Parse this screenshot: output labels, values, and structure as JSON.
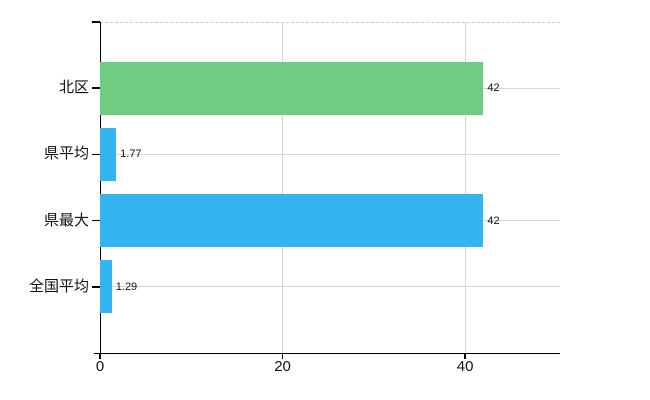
{
  "chart_data": {
    "type": "bar",
    "orientation": "horizontal",
    "title": "",
    "categories": [
      "北区",
      "県平均",
      "県最大",
      "全国平均"
    ],
    "values": [
      42,
      1.77,
      42,
      1.29
    ],
    "value_labels": [
      "42",
      "1.77",
      "42",
      "1.29"
    ],
    "bar_colors": [
      "#6fcc81",
      "#34b5f1",
      "#34b5f1",
      "#34b5f1"
    ],
    "x_ticks": [
      0,
      20,
      40
    ],
    "x_tick_labels": [
      "0",
      "20",
      "40"
    ],
    "xlim": [
      0,
      50.4
    ],
    "grid": true,
    "legend": false,
    "colors": {
      "green_bar": "#6fcc81",
      "blue_bar": "#34b5f1",
      "axis": "#000000",
      "h_gridline": "#cfd9cf",
      "v_gridline": "#d7d7d7",
      "top_border": "#c9c9c9",
      "text": "#111111",
      "background": "#ffffff"
    }
  }
}
